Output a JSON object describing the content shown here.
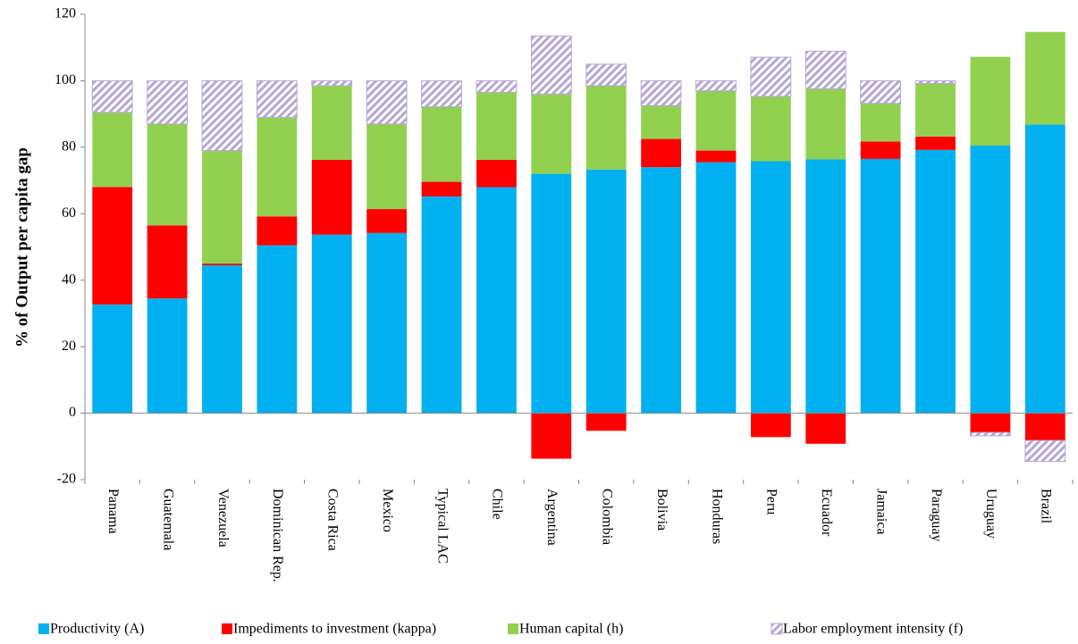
{
  "chart_data": {
    "type": "stacked_bar",
    "y_label": "% of Output per capita gap",
    "categories": [
      "Panama",
      "Guatemala",
      "Venezuela",
      "Dominican Rep.",
      "Costa Rica",
      "Mexico",
      "Typical LAC",
      "Chile",
      "Argentina",
      "Colombia",
      "Bolivia",
      "Honduras",
      "Peru",
      "Ecuador",
      "Jamaica",
      "Paraguay",
      "Uruguay",
      "Brazil"
    ],
    "series": [
      {
        "name": "Productivity (A)",
        "color": "#00b0f0",
        "values": [
          32.7,
          34.5,
          44.5,
          50.5,
          53.7,
          54.2,
          65.2,
          68,
          72,
          73.3,
          74,
          75.5,
          75.8,
          76.4,
          76.5,
          79.2,
          80.5,
          86.8
        ]
      },
      {
        "name": "Impediments to investment (kappa)",
        "color": "#ff0000",
        "values": [
          35.3,
          22,
          0.5,
          8.7,
          22.5,
          7.2,
          4.4,
          8.2,
          -13.7,
          -5.3,
          8.5,
          3.5,
          -7.2,
          -9.2,
          5.2,
          4,
          -5.8,
          -8.2
        ]
      },
      {
        "name": "Human capital (h)",
        "color": "#92d050",
        "values": [
          22.5,
          30.5,
          34,
          29.8,
          22.3,
          25.6,
          22.6,
          20.3,
          24,
          25.2,
          10,
          18,
          19.5,
          21.2,
          11.5,
          16,
          26.7,
          27.9
        ]
      },
      {
        "name": "Labor employment intensity (f)",
        "color": "#b4a7d6",
        "pattern": "hatch",
        "values": [
          9.5,
          13,
          21,
          11,
          1.5,
          13,
          7.8,
          3.5,
          17.5,
          6.5,
          7.5,
          3,
          11.8,
          11.3,
          6.8,
          0.8,
          -1,
          -6.3
        ]
      }
    ],
    "ylim": [
      -20,
      120
    ],
    "yticks": [
      -20,
      0,
      20,
      40,
      60,
      80,
      100,
      120
    ]
  }
}
